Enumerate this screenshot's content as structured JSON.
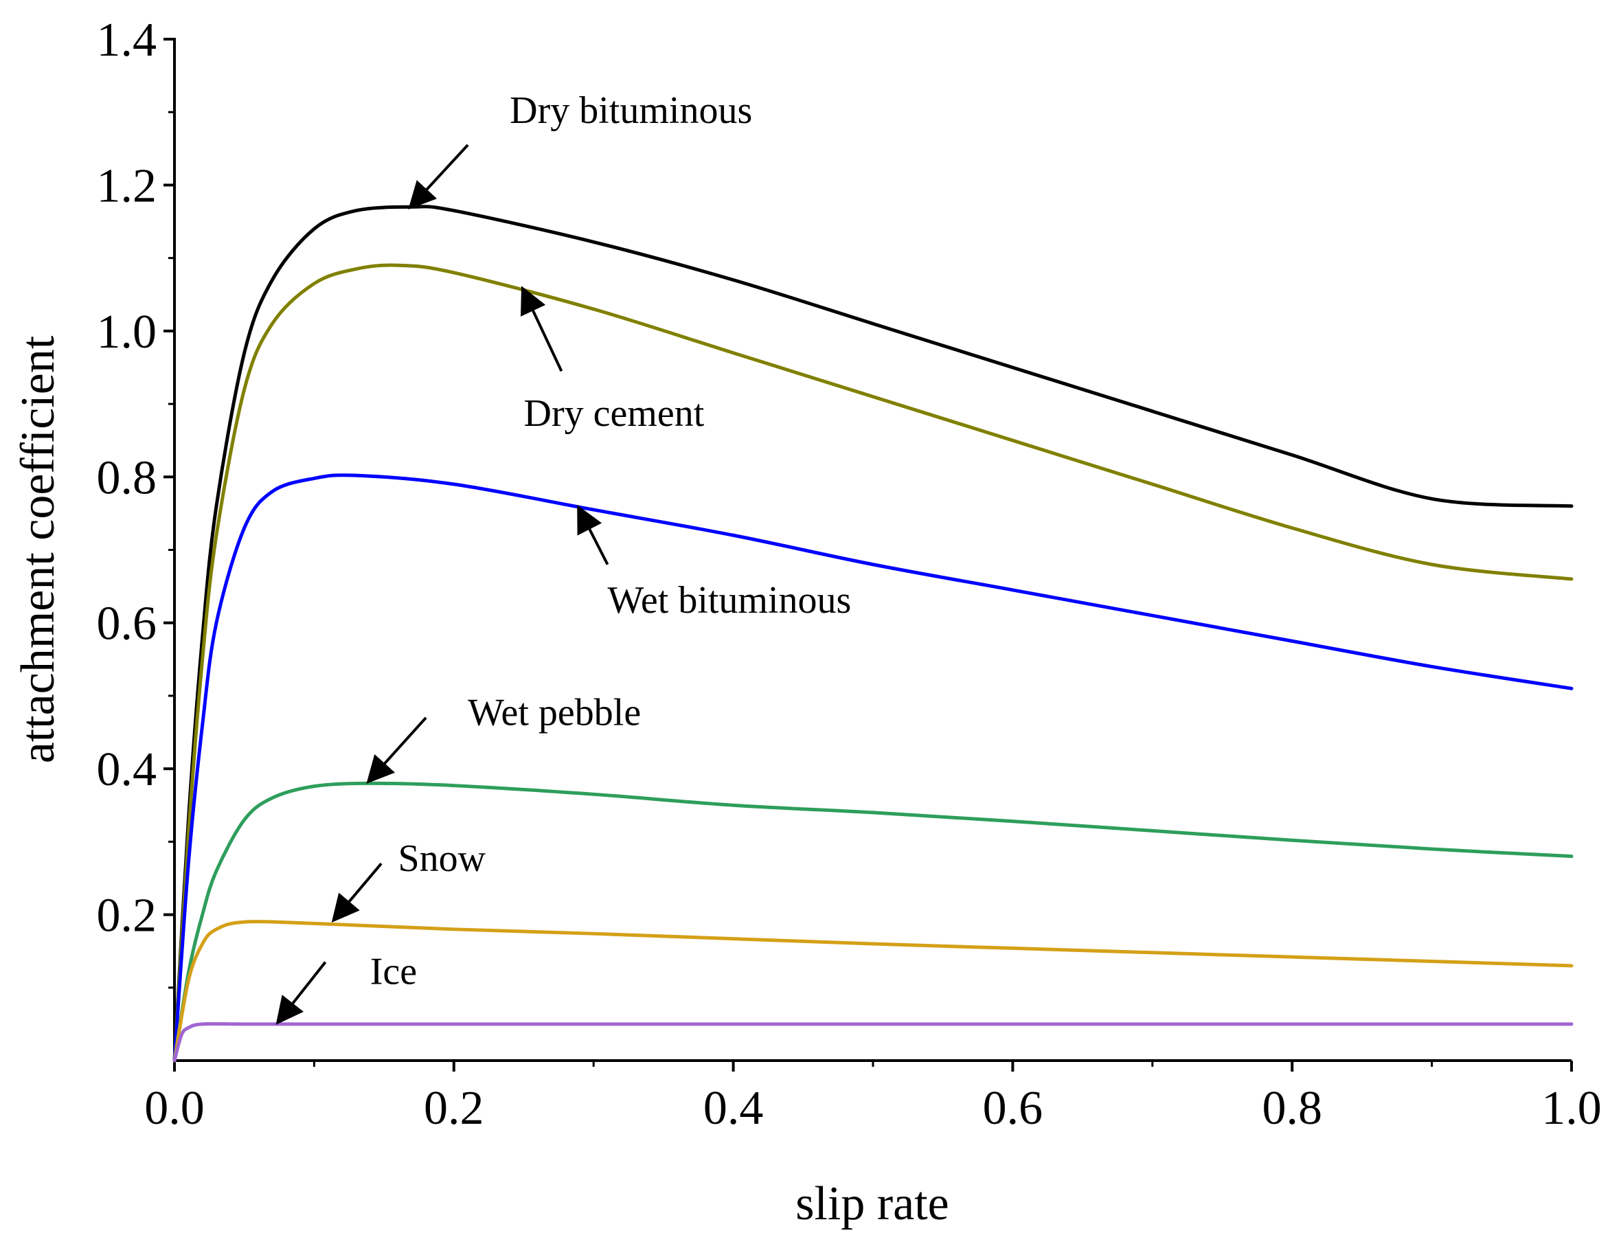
{
  "chart_data": {
    "type": "line",
    "title": "",
    "xlabel": "slip rate",
    "ylabel": "attachment coefficient",
    "xlim": [
      0,
      1.0
    ],
    "ylim": [
      0,
      1.4
    ],
    "xticks": [
      "0.0",
      "0.2",
      "0.4",
      "0.6",
      "0.8",
      "1.0"
    ],
    "yticks": [
      "0.2",
      "0.4",
      "0.6",
      "0.8",
      "1.0",
      "1.2",
      "1.4"
    ],
    "grid": false,
    "legend": "none",
    "series": [
      {
        "name": "Dry bituminous",
        "color": "#000000",
        "x": [
          0,
          0.01,
          0.02,
          0.03,
          0.05,
          0.07,
          0.1,
          0.13,
          0.17,
          0.2,
          0.3,
          0.4,
          0.5,
          0.6,
          0.7,
          0.8,
          0.9,
          1.0
        ],
        "y": [
          0,
          0.33,
          0.58,
          0.76,
          0.97,
          1.07,
          1.14,
          1.165,
          1.17,
          1.165,
          1.122,
          1.07,
          1.01,
          0.95,
          0.89,
          0.83,
          0.77,
          0.76
        ]
      },
      {
        "name": "Dry cement",
        "color": "#808000",
        "x": [
          0,
          0.01,
          0.02,
          0.03,
          0.05,
          0.07,
          0.1,
          0.13,
          0.16,
          0.2,
          0.3,
          0.4,
          0.5,
          0.6,
          0.7,
          0.8,
          0.9,
          1.0
        ],
        "y": [
          0,
          0.31,
          0.55,
          0.72,
          0.92,
          1.01,
          1.065,
          1.085,
          1.09,
          1.08,
          1.03,
          0.97,
          0.91,
          0.85,
          0.79,
          0.73,
          0.68,
          0.66
        ]
      },
      {
        "name": "Wet bituminous",
        "color": "#0000ff",
        "x": [
          0,
          0.01,
          0.02,
          0.03,
          0.05,
          0.07,
          0.1,
          0.13,
          0.2,
          0.3,
          0.4,
          0.5,
          0.6,
          0.7,
          0.8,
          0.9,
          1.0
        ],
        "y": [
          0,
          0.27,
          0.46,
          0.6,
          0.73,
          0.78,
          0.798,
          0.802,
          0.79,
          0.755,
          0.72,
          0.68,
          0.645,
          0.61,
          0.575,
          0.54,
          0.51
        ]
      },
      {
        "name": "Wet pebble",
        "color": "#2e9e5b",
        "x": [
          0,
          0.01,
          0.02,
          0.03,
          0.05,
          0.07,
          0.1,
          0.14,
          0.2,
          0.3,
          0.4,
          0.5,
          0.6,
          0.7,
          0.8,
          0.9,
          1.0
        ],
        "y": [
          0,
          0.12,
          0.2,
          0.26,
          0.33,
          0.36,
          0.376,
          0.38,
          0.377,
          0.365,
          0.35,
          0.34,
          0.328,
          0.315,
          0.302,
          0.29,
          0.28
        ]
      },
      {
        "name": "Snow",
        "color": "#d4a017",
        "x": [
          0,
          0.01,
          0.02,
          0.03,
          0.05,
          0.1,
          0.2,
          0.3,
          0.4,
          0.5,
          0.6,
          0.7,
          0.8,
          0.9,
          1.0
        ],
        "y": [
          0,
          0.11,
          0.16,
          0.18,
          0.19,
          0.188,
          0.18,
          0.174,
          0.167,
          0.16,
          0.154,
          0.148,
          0.142,
          0.136,
          0.13
        ]
      },
      {
        "name": "Ice",
        "color": "#a066d3",
        "x": [
          0,
          0.005,
          0.01,
          0.02,
          0.05,
          0.1,
          0.2,
          0.4,
          0.6,
          0.8,
          1.0
        ],
        "y": [
          0,
          0.035,
          0.045,
          0.05,
          0.05,
          0.05,
          0.05,
          0.05,
          0.05,
          0.05,
          0.05
        ]
      }
    ],
    "annotations": [
      {
        "text": "Dry bituminous",
        "x_text": 0.24,
        "y_text": 1.285,
        "arrow_from": [
          0.21,
          1.255
        ],
        "arrow_to": [
          0.17,
          1.172
        ]
      },
      {
        "text": "Dry cement",
        "x_text": 0.25,
        "y_text": 0.87,
        "arrow_from": [
          0.277,
          0.945
        ],
        "arrow_to": [
          0.25,
          1.055
        ]
      },
      {
        "text": "Wet bituminous",
        "x_text": 0.31,
        "y_text": 0.614,
        "arrow_from": [
          0.31,
          0.68
        ],
        "arrow_to": [
          0.29,
          0.755
        ]
      },
      {
        "text": "Wet pebble",
        "x_text": 0.21,
        "y_text": 0.46,
        "arrow_from": [
          0.18,
          0.47
        ],
        "arrow_to": [
          0.14,
          0.385
        ]
      },
      {
        "text": "Snow",
        "x_text": 0.16,
        "y_text": 0.26,
        "arrow_from": [
          0.148,
          0.27
        ],
        "arrow_to": [
          0.115,
          0.195
        ]
      },
      {
        "text": "Ice",
        "x_text": 0.14,
        "y_text": 0.105,
        "arrow_from": [
          0.108,
          0.135
        ],
        "arrow_to": [
          0.075,
          0.055
        ]
      }
    ]
  }
}
